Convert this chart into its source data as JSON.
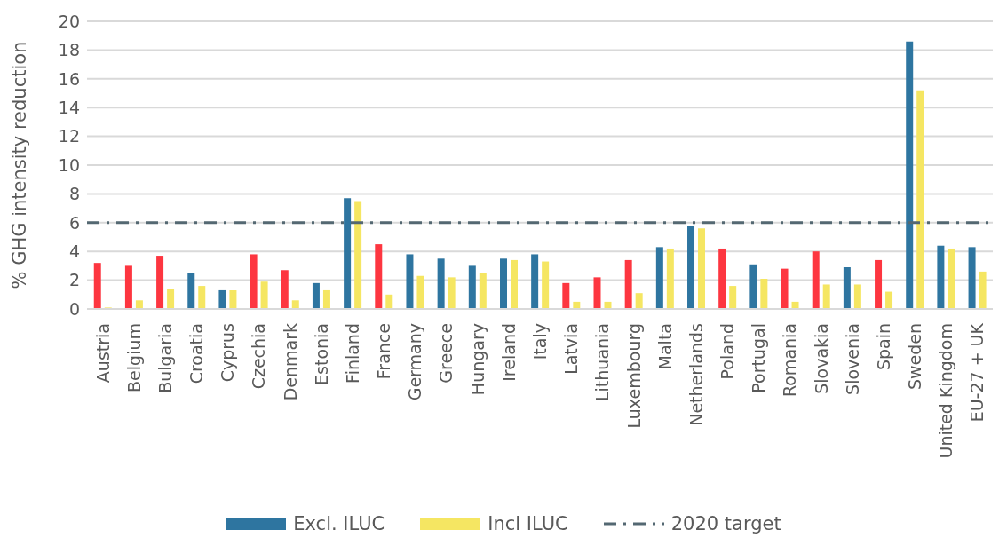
{
  "chart_data": {
    "type": "bar",
    "ylabel": "% GHG intensity reduction",
    "categories": [
      "Austria",
      "Belgium",
      "Bulgaria",
      "Croatia",
      "Cyprus",
      "Czechia",
      "Denmark",
      "Estonia",
      "Finland",
      "France",
      "Germany",
      "Greece",
      "Hungary",
      "Ireland",
      "Italy",
      "Latvia",
      "Lithuania",
      "Luxembourg",
      "Malta",
      "Netherlands",
      "Poland",
      "Portugal",
      "Romania",
      "Slovakia",
      "Slovenia",
      "Spain",
      "Sweden",
      "United Kingdom",
      "EU-27 + UK"
    ],
    "series": [
      {
        "name": "Excl. ILUC",
        "color": "#2e75a0",
        "values": [
          3.2,
          3.0,
          3.7,
          2.5,
          1.3,
          3.8,
          2.7,
          1.8,
          7.7,
          4.5,
          3.8,
          3.5,
          3.0,
          3.5,
          3.8,
          1.8,
          2.2,
          3.4,
          4.3,
          5.8,
          4.2,
          3.1,
          2.8,
          4.0,
          2.9,
          3.4,
          18.6,
          4.4,
          4.3
        ],
        "colors": [
          "#fd3640",
          "#fd3640",
          "#fd3640",
          "#2e75a0",
          "#2e75a0",
          "#fd3640",
          "#fd3640",
          "#2e75a0",
          "#2e75a0",
          "#fd3640",
          "#2e75a0",
          "#2e75a0",
          "#2e75a0",
          "#2e75a0",
          "#2e75a0",
          "#fd3640",
          "#fd3640",
          "#fd3640",
          "#2e75a0",
          "#2e75a0",
          "#fd3640",
          "#2e75a0",
          "#fd3640",
          "#fd3640",
          "#2e75a0",
          "#fd3640",
          "#2e75a0",
          "#2e75a0",
          "#2e75a0"
        ]
      },
      {
        "name": "Incl ILUC",
        "color": "#f5e662",
        "values": [
          0.1,
          0.6,
          1.4,
          1.6,
          1.3,
          1.9,
          0.6,
          1.3,
          7.5,
          1.0,
          2.3,
          2.2,
          2.5,
          3.4,
          3.3,
          0.5,
          0.5,
          1.1,
          4.2,
          5.6,
          1.6,
          2.1,
          0.5,
          1.7,
          1.7,
          1.2,
          15.2,
          4.2,
          2.6
        ]
      }
    ],
    "ylim": [
      0,
      20
    ],
    "yticks": [
      0,
      2,
      4,
      6,
      8,
      10,
      12,
      14,
      16,
      18,
      20
    ],
    "grid": "y",
    "legend": "bottom",
    "ref_lines": [
      {
        "axis": "y",
        "value": 6,
        "label": "2020 target",
        "color": "#546872",
        "line_style": "dashdot"
      }
    ]
  }
}
